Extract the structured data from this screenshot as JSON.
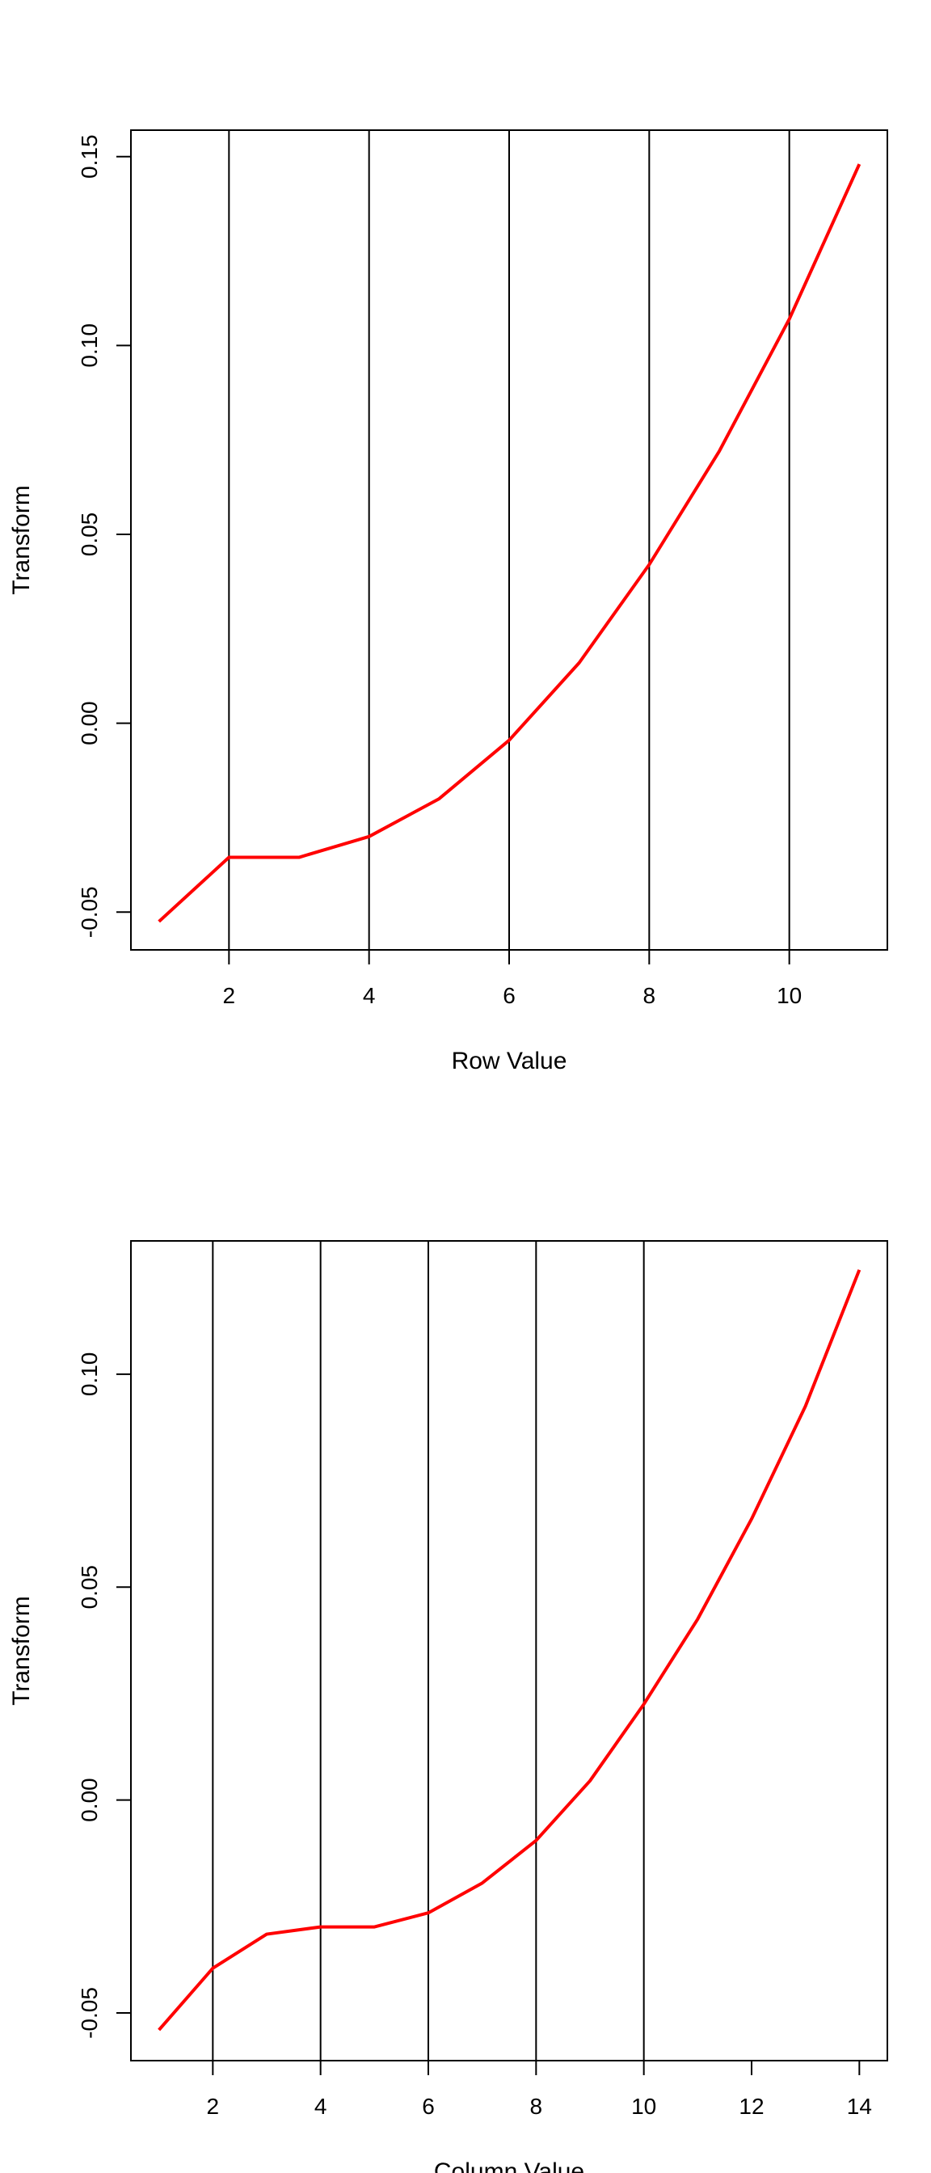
{
  "chart_data": [
    {
      "type": "line",
      "xlabel": "Row Value",
      "ylabel": "Transform",
      "xlim": [
        0.6,
        11.4
      ],
      "ylim": [
        -0.06,
        0.157
      ],
      "x_ticks": [
        2,
        4,
        6,
        8,
        10
      ],
      "y_ticks": [
        -0.05,
        0.0,
        0.05,
        0.1,
        0.15
      ],
      "x_tick_labels": [
        "2",
        "4",
        "6",
        "8",
        "10"
      ],
      "y_tick_labels": [
        "-0.05",
        "0.00",
        "0.05",
        "0.10",
        "0.15"
      ],
      "vertical_lines": [
        2,
        4,
        6,
        8,
        10
      ],
      "grid": false,
      "series": [
        {
          "color": "#ff0000",
          "x": [
            1,
            2,
            3,
            4,
            5,
            6,
            7,
            8,
            9,
            10,
            11
          ],
          "y": [
            -0.0525,
            -0.0355,
            -0.0355,
            -0.03,
            -0.02,
            -0.0045,
            0.016,
            0.042,
            0.072,
            0.107,
            0.148
          ]
        }
      ]
    },
    {
      "type": "line",
      "xlabel": "Column Value",
      "ylabel": "Transform",
      "xlim": [
        0.48,
        14.52
      ],
      "ylim": [
        -0.0612,
        0.1313
      ],
      "x_ticks": [
        2,
        4,
        6,
        8,
        10,
        12,
        14
      ],
      "y_ticks": [
        -0.05,
        0.0,
        0.05,
        0.1
      ],
      "x_tick_labels": [
        "2",
        "4",
        "6",
        "8",
        "10",
        "12",
        "14"
      ],
      "y_tick_labels": [
        "-0.05",
        "0.00",
        "0.05",
        "0.10"
      ],
      "vertical_lines": [
        2,
        4,
        6,
        8,
        10
      ],
      "grid": false,
      "series": [
        {
          "color": "#ff0000",
          "x": [
            1,
            2,
            3,
            4,
            5,
            6,
            7,
            8,
            9,
            10,
            11,
            12,
            13,
            14
          ],
          "y": [
            -0.054,
            -0.0395,
            -0.0315,
            -0.0298,
            -0.0298,
            -0.0265,
            -0.0195,
            -0.0095,
            0.0045,
            0.0225,
            0.0425,
            0.066,
            0.0925,
            0.1245
          ]
        }
      ]
    }
  ]
}
